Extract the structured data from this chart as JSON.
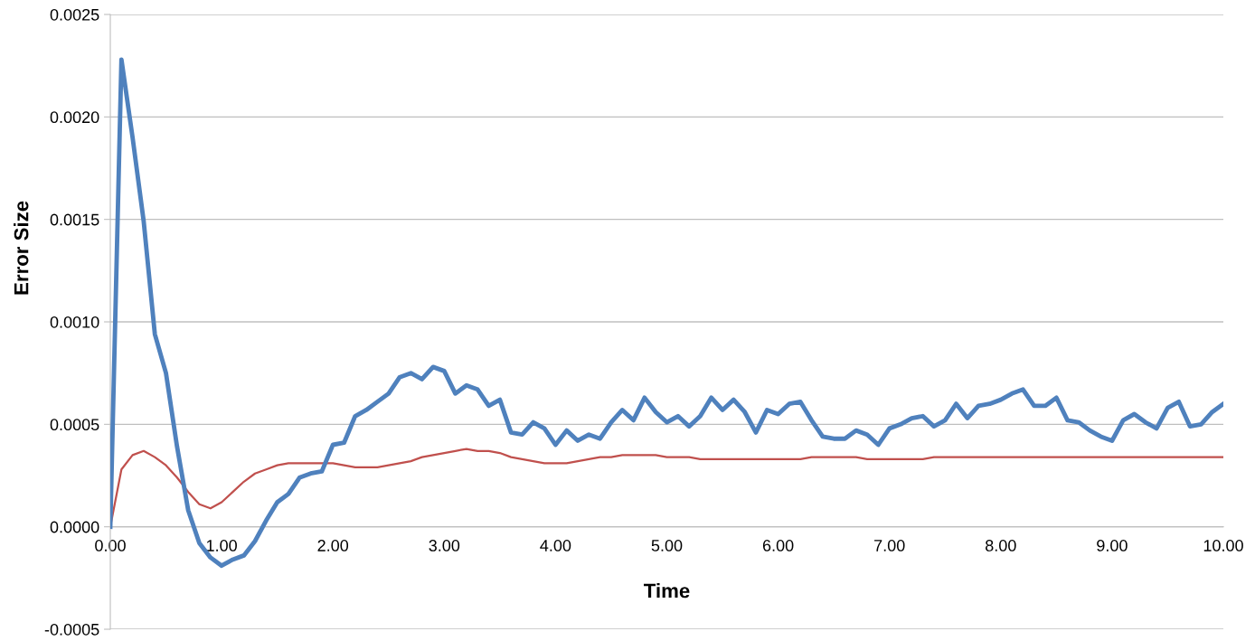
{
  "chart_data": {
    "type": "line",
    "xlabel": "Time",
    "ylabel": "Error Size",
    "categories": [
      "0.00",
      null,
      null,
      null,
      null,
      null,
      null,
      null,
      null,
      null,
      "1.00",
      null,
      null,
      null,
      null,
      null,
      null,
      null,
      null,
      null,
      "2.00",
      null,
      null,
      null,
      null,
      null,
      null,
      null,
      null,
      null,
      "3.00",
      null,
      null,
      null,
      null,
      null,
      null,
      null,
      null,
      null,
      "4.00",
      null,
      null,
      null,
      null,
      null,
      null,
      null,
      null,
      null,
      "5.00",
      null,
      null,
      null,
      null,
      null,
      null,
      null,
      null,
      null,
      "6.00",
      null,
      null,
      null,
      null,
      null,
      null,
      null,
      null,
      null,
      "7.00",
      null,
      null,
      null,
      null,
      null,
      null,
      null,
      null,
      null,
      "8.00",
      null,
      null,
      null,
      null,
      null,
      null,
      null,
      null,
      null,
      "9.00",
      null,
      null,
      null,
      null,
      null,
      null,
      null,
      null,
      null,
      "10.00"
    ],
    "series": [
      {
        "color": "#4f81bd",
        "values": [
          0,
          0.00228,
          0.0019,
          0.00149,
          0.00094,
          0.00075,
          0.00039,
          8e-05,
          -8e-05,
          -0.00015,
          -0.00019,
          -0.00016,
          -0.00014,
          -7e-05,
          3e-05,
          0.00012,
          0.00016,
          0.00024,
          0.00026,
          0.00027,
          0.0004,
          0.00041,
          0.00054,
          0.00057,
          0.00061,
          0.00065,
          0.00073,
          0.00075,
          0.00072,
          0.00078,
          0.00076,
          0.00065,
          0.00069,
          0.00067,
          0.00059,
          0.00062,
          0.00046,
          0.00045,
          0.00051,
          0.00048,
          0.0004,
          0.00047,
          0.00042,
          0.00045,
          0.00043,
          0.00051,
          0.00057,
          0.00052,
          0.00063,
          0.00056,
          0.00051,
          0.00054,
          0.00049,
          0.00054,
          0.00063,
          0.00057,
          0.00062,
          0.00056,
          0.00046,
          0.00057,
          0.00055,
          0.0006,
          0.00061,
          0.00052,
          0.00044,
          0.00043,
          0.00043,
          0.00047,
          0.00045,
          0.0004,
          0.00048,
          0.0005,
          0.00053,
          0.00054,
          0.00049,
          0.00052,
          0.0006,
          0.00053,
          0.00059,
          0.0006,
          0.00062,
          0.00065,
          0.00067,
          0.00059,
          0.00059,
          0.00063,
          0.00052,
          0.00051,
          0.00047,
          0.00044,
          0.00042,
          0.00052,
          0.00055,
          0.00051,
          0.00048,
          0.00058,
          0.00061,
          0.00049,
          0.0005,
          0.00056,
          0.0006
        ]
      },
      {
        "color": "#c0504d",
        "values": [
          0,
          0.00028,
          0.00035,
          0.00037,
          0.00034,
          0.0003,
          0.00024,
          0.00017,
          0.00011,
          9e-05,
          0.00012,
          0.00017,
          0.00022,
          0.00026,
          0.00028,
          0.0003,
          0.00031,
          0.00031,
          0.00031,
          0.00031,
          0.00031,
          0.0003,
          0.00029,
          0.00029,
          0.00029,
          0.0003,
          0.00031,
          0.00032,
          0.00034,
          0.00035,
          0.00036,
          0.00037,
          0.00038,
          0.00037,
          0.00037,
          0.00036,
          0.00034,
          0.00033,
          0.00032,
          0.00031,
          0.00031,
          0.00031,
          0.00032,
          0.00033,
          0.00034,
          0.00034,
          0.00035,
          0.00035,
          0.00035,
          0.00035,
          0.00034,
          0.00034,
          0.00034,
          0.00033,
          0.00033,
          0.00033,
          0.00033,
          0.00033,
          0.00033,
          0.00033,
          0.00033,
          0.00033,
          0.00033,
          0.00034,
          0.00034,
          0.00034,
          0.00034,
          0.00034,
          0.00033,
          0.00033,
          0.00033,
          0.00033,
          0.00033,
          0.00033,
          0.00034,
          0.00034,
          0.00034,
          0.00034,
          0.00034,
          0.00034,
          0.00034,
          0.00034,
          0.00034,
          0.00034,
          0.00034,
          0.00034,
          0.00034,
          0.00034,
          0.00034,
          0.00034,
          0.00034,
          0.00034,
          0.00034,
          0.00034,
          0.00034,
          0.00034,
          0.00034,
          0.00034,
          0.00034,
          0.00034,
          0.00034
        ]
      }
    ],
    "ylim": [
      -0.0005,
      0.0025
    ],
    "yticks": [
      {
        "value": -0.0005,
        "label": "-0.0005"
      },
      {
        "value": 0,
        "label": "0.0000"
      },
      {
        "value": 0.0005,
        "label": "0.0005"
      },
      {
        "value": 0.001,
        "label": "0.0010"
      },
      {
        "value": 0.0015,
        "label": "0.0015"
      },
      {
        "value": 0.002,
        "label": "0.0020"
      },
      {
        "value": 0.0025,
        "label": "0.0025"
      }
    ],
    "grid": "y",
    "marker": "none",
    "line_style": "solid"
  }
}
